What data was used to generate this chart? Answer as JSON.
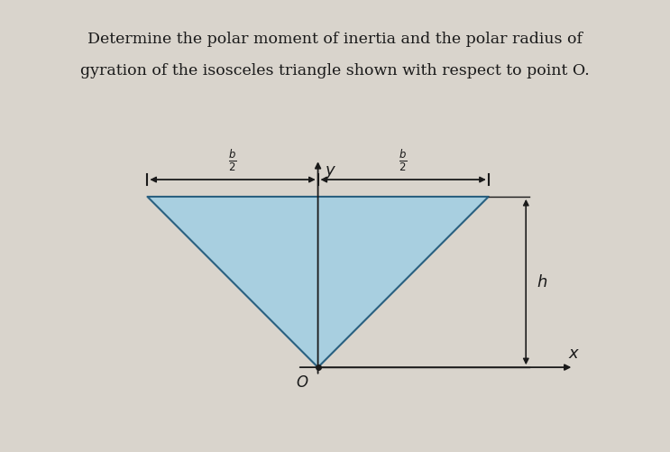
{
  "title_line1": "Determine the polar moment of inertia and the polar radius of",
  "title_line2": "gyration of the isosceles triangle shown with respect to point O.",
  "bg_color": "#d9d4cc",
  "triangle_fill": "#a8cfe0",
  "triangle_edge": "#2a6080",
  "apex_label": "O",
  "x_axis_label": "x",
  "y_axis_label": "y",
  "text_color": "#1a1a1a",
  "axis_color": "#1a1a1a",
  "arrow_color": "#1a1a1a"
}
